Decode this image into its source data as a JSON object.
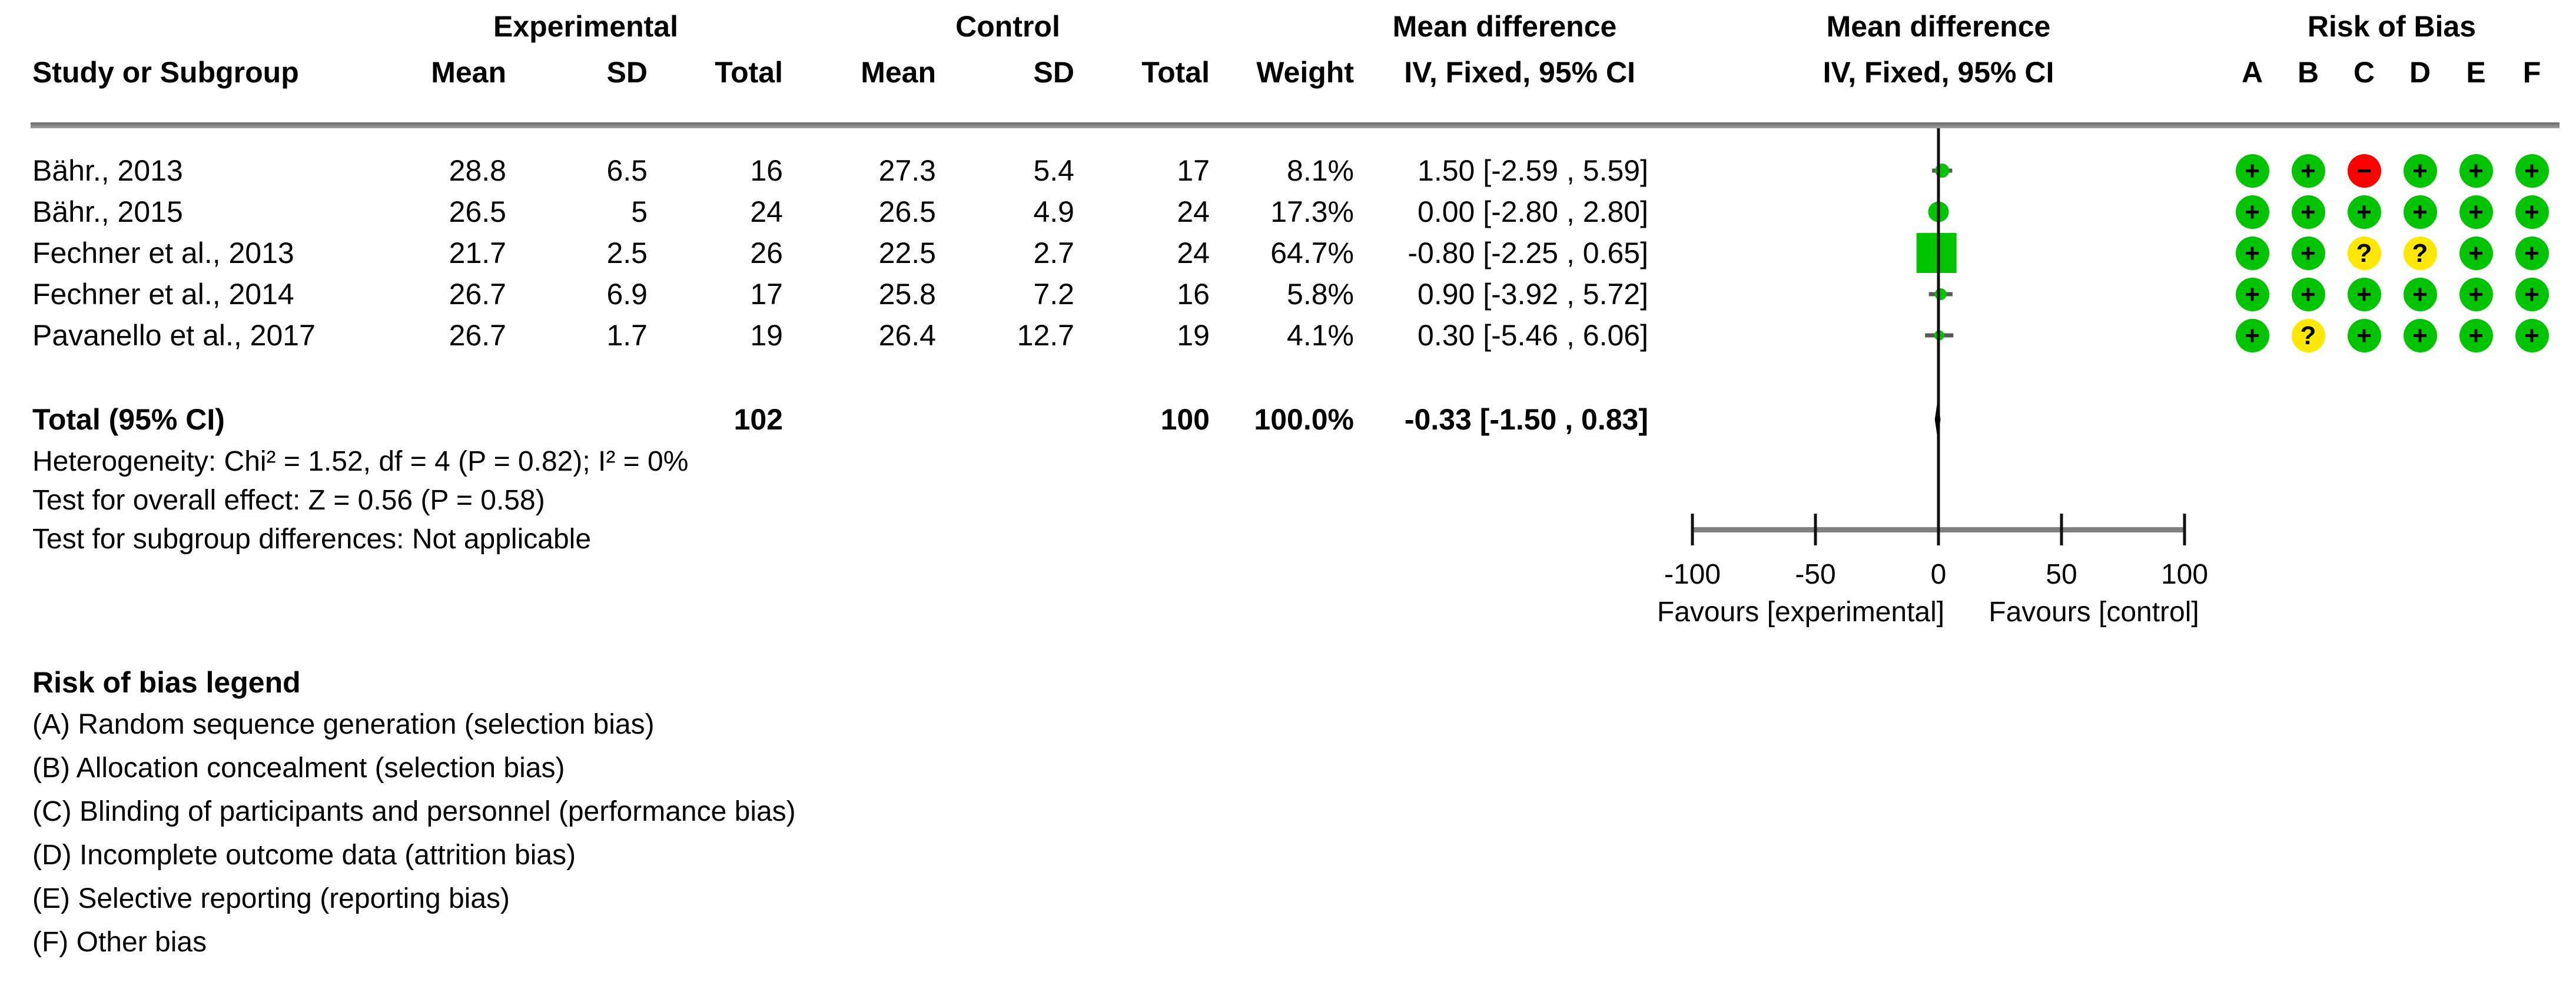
{
  "header": {
    "group_experimental": "Experimental",
    "group_control": "Control",
    "mean_difference_text_col": "Mean difference",
    "mean_difference_plot_col": "Mean difference",
    "risk_of_bias": "Risk of Bias",
    "col_study": "Study or Subgroup",
    "col_mean_exp": "Mean",
    "col_sd_exp": "SD",
    "col_total_exp": "Total",
    "col_mean_ctl": "Mean",
    "col_sd_ctl": "SD",
    "col_total_ctl": "Total",
    "col_weight": "Weight",
    "col_ci_text": "IV, Fixed, 95% CI",
    "col_ci_plot": "IV, Fixed, 95% CI",
    "rob_cols": [
      "A",
      "B",
      "C",
      "D",
      "E",
      "F"
    ]
  },
  "rows": [
    {
      "study": "Bähr., 2013",
      "e_mean": "28.8",
      "e_sd": "6.5",
      "e_total": "16",
      "c_mean": "27.3",
      "c_sd": "5.4",
      "c_total": "17",
      "weight": "8.1%",
      "ci": "1.50 [-2.59 , 5.59]"
    },
    {
      "study": "Bähr., 2015",
      "e_mean": "26.5",
      "e_sd": "5",
      "e_total": "24",
      "c_mean": "26.5",
      "c_sd": "4.9",
      "c_total": "24",
      "weight": "17.3%",
      "ci": "0.00 [-2.80 , 2.80]"
    },
    {
      "study": "Fechner et al., 2013",
      "e_mean": "21.7",
      "e_sd": "2.5",
      "e_total": "26",
      "c_mean": "22.5",
      "c_sd": "2.7",
      "c_total": "24",
      "weight": "64.7%",
      "ci": "-0.80 [-2.25 , 0.65]"
    },
    {
      "study": "Fechner et al., 2014",
      "e_mean": "26.7",
      "e_sd": "6.9",
      "e_total": "17",
      "c_mean": "25.8",
      "c_sd": "7.2",
      "c_total": "16",
      "weight": "5.8%",
      "ci": "0.90 [-3.92 , 5.72]"
    },
    {
      "study": "Pavanello et al., 2017",
      "e_mean": "26.7",
      "e_sd": "1.7",
      "e_total": "19",
      "c_mean": "26.4",
      "c_sd": "12.7",
      "c_total": "19",
      "weight": "4.1%",
      "ci": "0.30 [-5.46 , 6.06]"
    }
  ],
  "total": {
    "label": "Total (95% CI)",
    "e_total": "102",
    "c_total": "100",
    "weight": "100.0%",
    "ci": "-0.33 [-1.50 , 0.83]"
  },
  "footer": {
    "heterogeneity": "Heterogeneity: Chi² = 1.52, df = 4 (P = 0.82); I² = 0%",
    "overall_effect": "Test for overall effect: Z = 0.56 (P = 0.58)",
    "subgroup": "Test for subgroup differences: Not applicable"
  },
  "legend": {
    "title": "Risk of bias legend",
    "items": [
      "(A) Random sequence generation (selection bias)",
      "(B) Allocation concealment (selection bias)",
      "(C) Blinding of participants and personnel (performance bias)",
      "(D) Incomplete outcome data (attrition bias)",
      "(E) Selective reporting (reporting bias)",
      "(F) Other bias"
    ]
  },
  "colors": {
    "marker_green": "#00C400",
    "rob_low_green": "#00C400",
    "rob_high_red": "#FF0000",
    "rob_unclear_yellow": "#FFE800",
    "axis_gray": "#808080",
    "whisker_gray": "#595959",
    "line_black": "#111111"
  },
  "chart_data": {
    "type": "forest",
    "title": "Mean difference, IV, Fixed, 95% CI",
    "x_axis": {
      "min": -100,
      "max": 100,
      "ticks": [
        -100,
        -50,
        0,
        50,
        100
      ],
      "label_left": "Favours [experimental]",
      "label_right": "Favours [control]"
    },
    "studies": [
      {
        "name": "Bähr., 2013",
        "md": 1.5,
        "ci_low": -2.59,
        "ci_high": 5.59,
        "weight_pct": 8.1,
        "rob": [
          "low",
          "low",
          "high",
          "low",
          "low",
          "low"
        ]
      },
      {
        "name": "Bähr., 2015",
        "md": 0.0,
        "ci_low": -2.8,
        "ci_high": 2.8,
        "weight_pct": 17.3,
        "rob": [
          "low",
          "low",
          "low",
          "low",
          "low",
          "low"
        ]
      },
      {
        "name": "Fechner et al., 2013",
        "md": -0.8,
        "ci_low": -2.25,
        "ci_high": 0.65,
        "weight_pct": 64.7,
        "rob": [
          "low",
          "low",
          "unclear",
          "unclear",
          "low",
          "low"
        ]
      },
      {
        "name": "Fechner et al., 2014",
        "md": 0.9,
        "ci_low": -3.92,
        "ci_high": 5.72,
        "weight_pct": 5.8,
        "rob": [
          "low",
          "low",
          "low",
          "low",
          "low",
          "low"
        ]
      },
      {
        "name": "Pavanello et al., 2017",
        "md": 0.3,
        "ci_low": -5.46,
        "ci_high": 6.06,
        "weight_pct": 4.1,
        "rob": [
          "low",
          "unclear",
          "low",
          "low",
          "low",
          "low"
        ]
      }
    ],
    "total": {
      "md": -0.33,
      "ci_low": -1.5,
      "ci_high": 0.83,
      "z": 0.56,
      "p": 0.58,
      "i_squared_pct": 0,
      "chi_squared": 1.52,
      "df": 4
    },
    "rob_symbols": {
      "low": "+",
      "high": "−",
      "unclear": "?"
    }
  }
}
